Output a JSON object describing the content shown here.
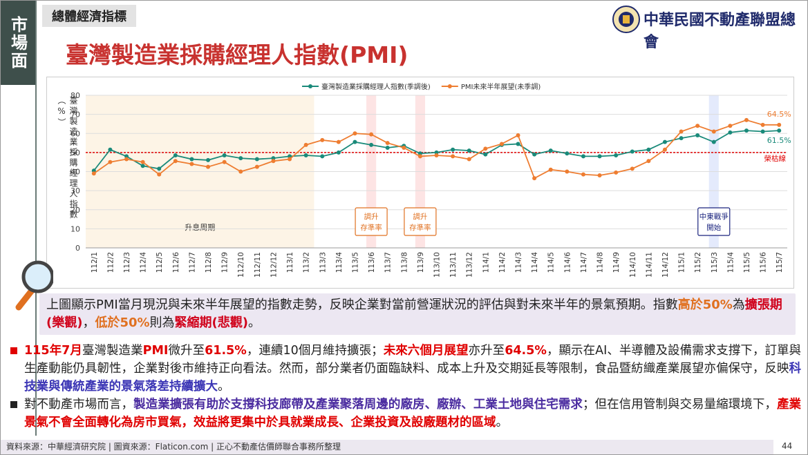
{
  "sidebar": "市場面",
  "section_tag": "總體經濟指標",
  "title": "臺灣製造業採購經理人指數(PMI)",
  "logo_text": "中華民國不動產聯盟總會",
  "chart_data": {
    "type": "line",
    "y_label": "臺灣製造業採購經理人指數（%）",
    "categories": [
      "112/1",
      "112/2",
      "112/3",
      "112/4",
      "112/5",
      "112/6",
      "112/7",
      "112/8",
      "112/9",
      "112/10",
      "112/11",
      "112/12",
      "113/1",
      "113/2",
      "113/3",
      "113/4",
      "113/5",
      "113/6",
      "113/7",
      "113/8",
      "113/9",
      "113/10",
      "113/11",
      "113/12",
      "114/1",
      "114/2",
      "114/3",
      "114/4",
      "114/5",
      "114/6",
      "114/7",
      "114/8",
      "114/9",
      "114/10",
      "114/11",
      "114/12",
      "115/1",
      "115/2",
      "115/3",
      "115/4",
      "115/5",
      "115/6",
      "115/7"
    ],
    "series": [
      {
        "name": "臺灣製造業採購經理人指數(季調後)",
        "color": "#1a8a7a",
        "values": [
          40.5,
          51.5,
          48,
          43,
          41.5,
          48.5,
          46.5,
          46,
          48.5,
          47,
          46.5,
          47,
          48,
          48.5,
          48,
          50,
          55.5,
          54,
          52.5,
          53.5,
          49.5,
          50,
          51.5,
          51,
          49,
          54,
          54.5,
          49,
          51,
          49.5,
          48,
          48,
          48.5,
          50.5,
          51.5,
          55.5,
          57.5,
          59,
          55.5,
          60.5,
          61.5,
          61,
          61.5
        ],
        "value_labels": [
          null,
          null,
          null,
          null,
          null,
          null,
          null,
          null,
          null,
          null,
          null,
          null,
          null,
          null,
          null,
          null,
          null,
          null,
          null,
          null,
          null,
          null,
          null,
          null,
          null,
          null,
          null,
          null,
          null,
          null,
          null,
          null,
          null,
          null,
          null,
          null,
          null,
          null,
          null,
          null,
          null,
          null,
          "61.5%"
        ]
      },
      {
        "name": "PMI未來半年展望(未季調)",
        "color": "#ee7d31",
        "values": [
          39,
          45,
          46.5,
          45,
          38.5,
          45.5,
          44,
          42.5,
          45,
          40,
          42.5,
          45.5,
          46.5,
          54,
          56.5,
          55.5,
          60,
          59.5,
          55,
          52.5,
          48,
          48.5,
          48,
          46.5,
          52,
          54.5,
          59,
          36.5,
          41,
          40,
          38.5,
          38,
          39.5,
          41.5,
          45.5,
          51.5,
          61,
          64,
          61,
          64,
          67,
          64.5,
          64.5
        ],
        "value_labels": [
          null,
          null,
          null,
          null,
          null,
          null,
          null,
          null,
          null,
          null,
          null,
          null,
          null,
          null,
          null,
          null,
          null,
          null,
          null,
          null,
          null,
          null,
          null,
          null,
          null,
          null,
          null,
          null,
          null,
          null,
          null,
          null,
          null,
          null,
          null,
          null,
          null,
          null,
          null,
          null,
          null,
          null,
          "64.5%"
        ]
      }
    ],
    "ylim": [
      0,
      80
    ],
    "yticks": [
      0,
      10,
      20,
      30,
      40,
      50,
      60,
      70,
      80
    ],
    "grid": true,
    "legend": "top",
    "reference_lines": [
      {
        "value": 50,
        "label": "榮枯線",
        "color": "#e00000"
      }
    ],
    "bands": [
      {
        "start": "112/1",
        "end": "113/2",
        "color": "#fdf4e6",
        "label": "升息周期"
      },
      {
        "start": "113/6",
        "end": "113/6",
        "color": "#fde4e4"
      },
      {
        "start": "113/9",
        "end": "113/9",
        "color": "#fde4e4"
      },
      {
        "start": "115/3",
        "end": "115/3",
        "color": "#e4eafc"
      }
    ],
    "annotations": [
      {
        "category": "113/6",
        "lines": [
          "調升",
          "存準率"
        ],
        "color": "#e07020"
      },
      {
        "category": "113/9",
        "lines": [
          "調升",
          "存準率"
        ],
        "color": "#e07020"
      },
      {
        "category": "115/3",
        "lines": [
          "中東戰爭",
          "開始"
        ],
        "color": "#1a237e"
      }
    ]
  },
  "note": [
    {
      "text": "上圖顯示PMI當月現況與未來半年展望的指數走勢，反映企業對當前營運狀況的評估與對未來半年的景氣預期。指數"
    },
    {
      "text": "高於50%",
      "color": "#e07020",
      "bold": true
    },
    {
      "text": "為"
    },
    {
      "text": "擴張期(樂觀)",
      "color": "#d0021b",
      "bold": true
    },
    {
      "text": "，"
    },
    {
      "text": "低於50%",
      "color": "#e07020",
      "bold": true
    },
    {
      "text": "則為"
    },
    {
      "text": "緊縮期(悲觀)",
      "color": "#d0021b",
      "bold": true
    },
    {
      "text": "。"
    }
  ],
  "bullets": [
    {
      "marker_color": "#e00000",
      "runs": [
        {
          "text": "115年7月",
          "color": "#e00000",
          "bold": true
        },
        {
          "text": "臺灣製造業"
        },
        {
          "text": "PMI",
          "color": "#e00000",
          "bold": true
        },
        {
          "text": "微升至"
        },
        {
          "text": "61.5%",
          "color": "#e00000",
          "bold": true
        },
        {
          "text": "，連續10個月維持擴張；"
        },
        {
          "text": "未來六個月展望",
          "color": "#e00000",
          "bold": true
        },
        {
          "text": "亦升至"
        },
        {
          "text": "64.5%",
          "color": "#e00000",
          "bold": true
        },
        {
          "text": "，顯示在AI、半導體及設備需求支撐下，訂單與生產動能仍具韌性，企業對後市維持正向看法。然而，部分業者仍面臨缺料、成本上升及交期延長等限制，食品暨紡織產業展望亦偏保守，反映"
        },
        {
          "text": "科技業與傳統產業的景氣落差持續擴大",
          "color": "#3b35b5",
          "bold": true
        },
        {
          "text": "。"
        }
      ]
    },
    {
      "marker_color": "#222222",
      "runs": [
        {
          "text": "對不動產市場而言，"
        },
        {
          "text": "製造業擴張有助於支撐科技廊帶及產業聚落周邊的廠房、廠辦、工業土地與住宅需求",
          "color": "#4b2ca0",
          "bold": true
        },
        {
          "text": "；但在信用管制與交易量縮環境下，"
        },
        {
          "text": "產業景氣不會全面轉化為房市買氣，效益將更集中於具就業成長、企業投資及設廠題材的區域",
          "color": "#e00000",
          "bold": true
        },
        {
          "text": "。"
        }
      ]
    }
  ],
  "footer": {
    "source": "資料來源：中華經濟研究院 | 圖資來源：Flaticon.com | 正心不動產估價師聯合事務所整理",
    "page": "44"
  }
}
